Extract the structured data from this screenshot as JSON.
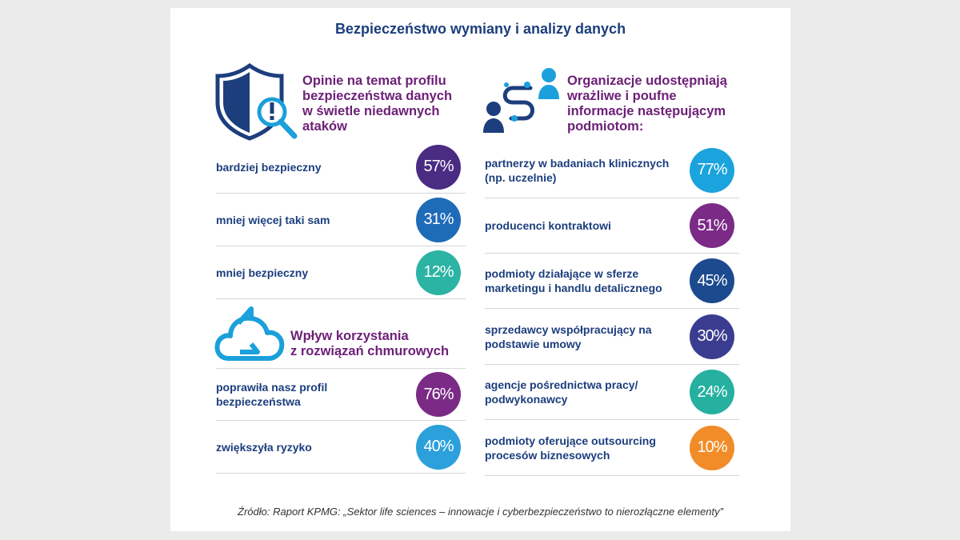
{
  "title": "Bezpieczeństwo wymiany i analizy danych",
  "left_top": {
    "heading_lines": [
      "Opinie na temat profilu",
      "bezpieczeństwa danych",
      "w świetle niedawnych",
      "ataków"
    ],
    "icon": "shield-search-icon",
    "rows": [
      {
        "label": "bardziej bezpieczny",
        "value": "57%",
        "color": "#4b2c83"
      },
      {
        "label": "mniej więcej taki sam",
        "value": "31%",
        "color": "#1e6bb8"
      },
      {
        "label": "mniej bezpieczny",
        "value": "12%",
        "color": "#2bb3a4"
      }
    ]
  },
  "left_bottom": {
    "heading_lines": [
      "Wpływ korzystania",
      "z rozwiązań chmurowych"
    ],
    "icon": "cloud-sync-icon",
    "rows": [
      {
        "label_lines": [
          "poprawiła nasz profil",
          "bezpieczeństwa"
        ],
        "value": "76%",
        "color": "#7b2b86"
      },
      {
        "label_lines": [
          "zwiększyła ryzyko"
        ],
        "value": "40%",
        "color": "#2ba0db"
      }
    ]
  },
  "right": {
    "heading_lines": [
      "Organizacje udostępniają",
      "wrażliwe i poufne",
      "informacje następującym",
      "podmiotom:"
    ],
    "icon": "people-exchange-icon",
    "rows": [
      {
        "label_lines": [
          "partnerzy w badaniach klinicznych",
          "(np. uczelnie)"
        ],
        "value": "77%",
        "color": "#1aa3dd"
      },
      {
        "label_lines": [
          "producenci kontraktowi"
        ],
        "value": "51%",
        "color": "#7b2b86"
      },
      {
        "label_lines": [
          "podmioty działające w sferze",
          "marketingu i handlu detalicznego"
        ],
        "value": "45%",
        "color": "#1c4a8e"
      },
      {
        "label_lines": [
          "sprzedawcy współpracujący na",
          "podstawie umowy"
        ],
        "value": "30%",
        "color": "#3a3d8f"
      },
      {
        "label_lines": [
          "agencje pośrednictwa pracy/",
          "podwykonawcy"
        ],
        "value": "24%",
        "color": "#25b0a0"
      },
      {
        "label_lines": [
          "podmioty oferujące outsourcing",
          "procesów biznesowych"
        ],
        "value": "10%",
        "color": "#f28c28"
      }
    ]
  },
  "footnote": "Źródło: Raport KPMG: „Sektor life sciences – innowacje i cyberbezpieczeństwo to nierozłączne elementy”"
}
